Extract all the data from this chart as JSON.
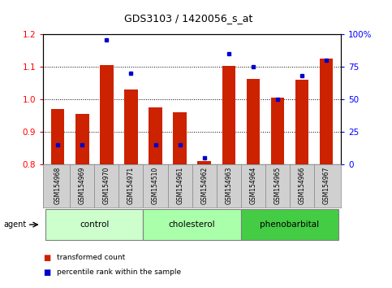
{
  "title": "GDS3103 / 1420056_s_at",
  "samples": [
    "GSM154968",
    "GSM154969",
    "GSM154970",
    "GSM154971",
    "GSM154510",
    "GSM154961",
    "GSM154962",
    "GSM154963",
    "GSM154964",
    "GSM154965",
    "GSM154966",
    "GSM154967"
  ],
  "red_values": [
    0.97,
    0.955,
    1.105,
    1.03,
    0.975,
    0.96,
    0.81,
    1.103,
    1.063,
    1.005,
    1.06,
    1.125
  ],
  "blue_percentiles": [
    15,
    15,
    96,
    70,
    15,
    15,
    5,
    85,
    75,
    50,
    68,
    80
  ],
  "groups": [
    {
      "label": "control",
      "indices": [
        0,
        1,
        2,
        3
      ],
      "color": "#ccffcc"
    },
    {
      "label": "cholesterol",
      "indices": [
        4,
        5,
        6,
        7
      ],
      "color": "#aaffaa"
    },
    {
      "label": "phenobarbital",
      "indices": [
        8,
        9,
        10,
        11
      ],
      "color": "#44cc44"
    }
  ],
  "ylim_left": [
    0.8,
    1.2
  ],
  "ylim_right": [
    0,
    100
  ],
  "yticks_left": [
    0.8,
    0.9,
    1.0,
    1.1,
    1.2
  ],
  "yticks_right": [
    0,
    25,
    50,
    75,
    100
  ],
  "yticklabels_right": [
    "0",
    "25",
    "50",
    "75",
    "100%"
  ],
  "bar_color": "#cc2200",
  "dot_color": "#0000cc",
  "bar_bottom": 0.8,
  "label_area_color": "#d0d0d0"
}
